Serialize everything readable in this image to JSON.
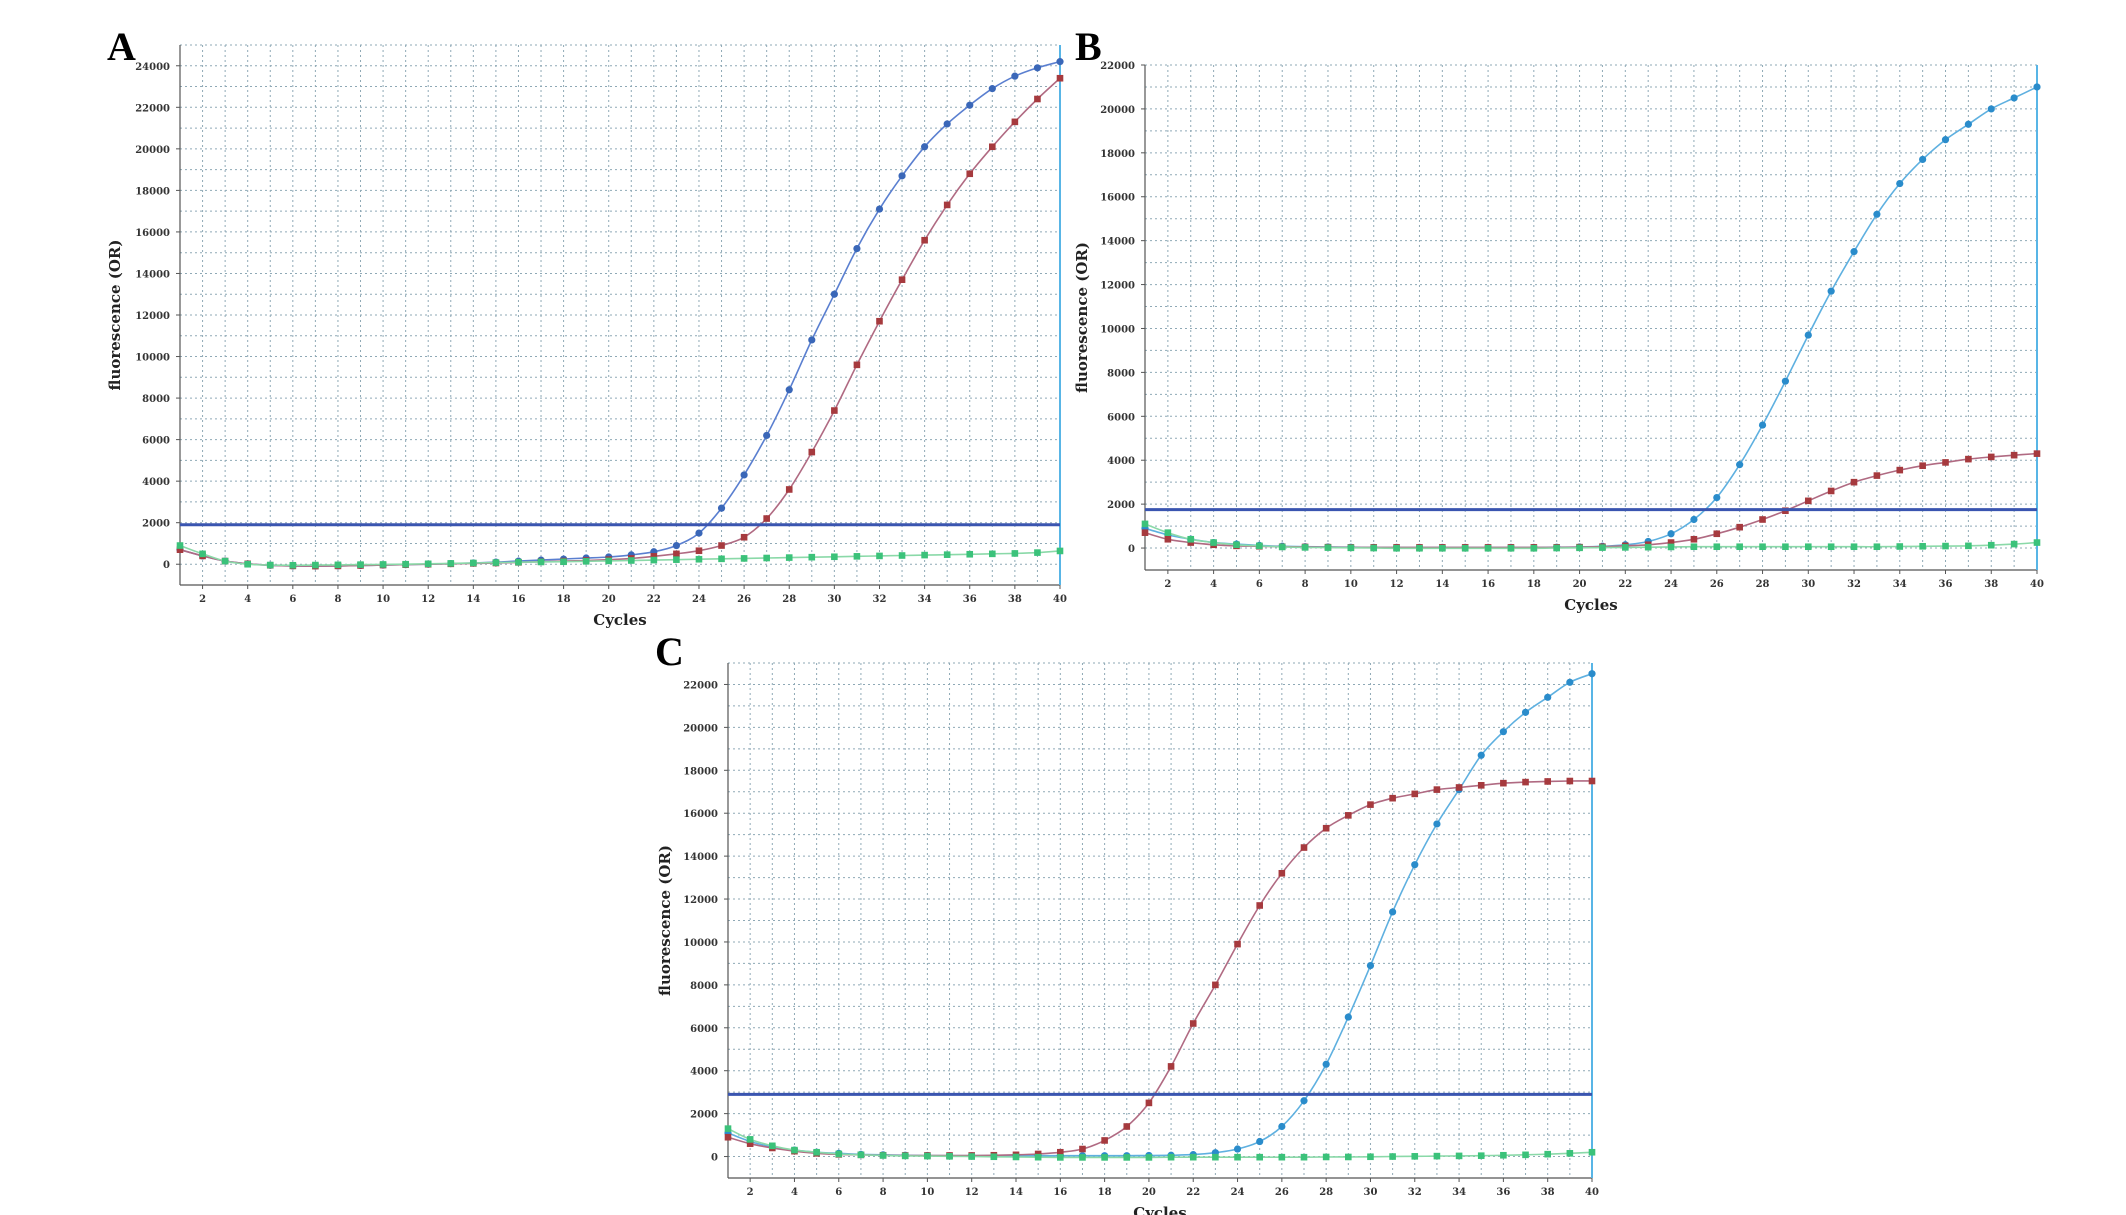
{
  "colors": {
    "series_blue": "#3a67b8",
    "series_lightblue": "#2a8ccb",
    "series_red": "#a63a3e",
    "series_green": "#3bc27a",
    "line_blue": "#5a7fd0",
    "line_lightblue": "#5eb0e0",
    "line_red": "#b06a82",
    "line_green": "#8ad9a8",
    "threshold": "#3a55b0",
    "right_bar": "#58b5e6"
  },
  "chart_data": [
    {
      "panel_label": "A",
      "type": "line",
      "xlabel": "Cycles",
      "ylabel": "fluorescence  (OR)",
      "xlim": [
        1,
        40
      ],
      "ylim": [
        -1000,
        25000
      ],
      "xticks": [
        2,
        4,
        6,
        8,
        10,
        12,
        14,
        16,
        18,
        20,
        22,
        24,
        26,
        28,
        30,
        32,
        34,
        36,
        38,
        40
      ],
      "yticks": [
        0,
        2000,
        4000,
        6000,
        8000,
        10000,
        12000,
        14000,
        16000,
        18000,
        20000,
        22000,
        24000
      ],
      "threshold": 1900,
      "grid": true,
      "series": [
        {
          "marker": "circle",
          "color_key": "blue",
          "values": [
            700,
            400,
            150,
            20,
            -50,
            -80,
            -90,
            -80,
            -60,
            -40,
            -20,
            0,
            30,
            60,
            100,
            150,
            200,
            250,
            300,
            350,
            450,
            600,
            900,
            1500,
            2700,
            4300,
            6200,
            8400,
            10800,
            13000,
            15200,
            17100,
            18700,
            20100,
            21200,
            22100,
            22900,
            23500,
            23900,
            24200
          ]
        },
        {
          "marker": "square",
          "color_key": "red",
          "values": [
            700,
            400,
            150,
            20,
            -50,
            -80,
            -90,
            -80,
            -60,
            -40,
            -20,
            0,
            20,
            40,
            60,
            90,
            120,
            150,
            180,
            220,
            280,
            380,
            500,
            650,
            900,
            1300,
            2200,
            3600,
            5400,
            7400,
            9600,
            11700,
            13700,
            15600,
            17300,
            18800,
            20100,
            21300,
            22400,
            23400
          ]
        },
        {
          "marker": "square",
          "color_key": "green",
          "values": [
            900,
            500,
            150,
            0,
            -40,
            -50,
            -40,
            -30,
            -20,
            -10,
            0,
            20,
            40,
            60,
            80,
            100,
            110,
            120,
            140,
            160,
            180,
            200,
            220,
            240,
            260,
            280,
            300,
            320,
            340,
            360,
            380,
            400,
            420,
            440,
            460,
            480,
            500,
            520,
            560,
            640
          ]
        }
      ]
    },
    {
      "panel_label": "B",
      "type": "line",
      "xlabel": "Cycles",
      "ylabel": "fluorescence  (OR)",
      "xlim": [
        1,
        40
      ],
      "ylim": [
        -1000,
        22000
      ],
      "xticks": [
        2,
        4,
        6,
        8,
        10,
        12,
        14,
        16,
        18,
        20,
        22,
        24,
        26,
        28,
        30,
        32,
        34,
        36,
        38,
        40
      ],
      "yticks": [
        0,
        2000,
        4000,
        6000,
        8000,
        10000,
        12000,
        14000,
        16000,
        18000,
        20000,
        22000
      ],
      "threshold": 1750,
      "grid": true,
      "series": [
        {
          "marker": "circle",
          "color_key": "lightblue",
          "values": [
            900,
            600,
            400,
            250,
            180,
            120,
            80,
            60,
            50,
            40,
            30,
            30,
            30,
            30,
            30,
            30,
            30,
            30,
            40,
            50,
            80,
            150,
            300,
            650,
            1300,
            2300,
            3800,
            5600,
            7600,
            9700,
            11700,
            13500,
            15200,
            16600,
            17700,
            18600,
            19300,
            20000,
            20500,
            21000
          ]
        },
        {
          "marker": "square",
          "color_key": "red",
          "values": [
            700,
            400,
            250,
            150,
            100,
            80,
            60,
            50,
            40,
            30,
            30,
            30,
            30,
            30,
            30,
            30,
            30,
            30,
            30,
            40,
            60,
            100,
            150,
            250,
            400,
            650,
            950,
            1300,
            1700,
            2150,
            2600,
            3000,
            3300,
            3550,
            3750,
            3900,
            4050,
            4150,
            4230,
            4300
          ]
        },
        {
          "marker": "square",
          "color_key": "green",
          "values": [
            1100,
            700,
            400,
            250,
            150,
            100,
            50,
            30,
            20,
            10,
            0,
            -10,
            -10,
            -10,
            -10,
            -10,
            -10,
            -10,
            0,
            10,
            20,
            30,
            40,
            50,
            60,
            60,
            60,
            60,
            60,
            60,
            60,
            60,
            60,
            70,
            80,
            90,
            100,
            130,
            180,
            250
          ]
        }
      ]
    },
    {
      "panel_label": "C",
      "type": "line",
      "xlabel": "Cycles",
      "ylabel": "fluorescence  (OR)",
      "xlim": [
        1,
        40
      ],
      "ylim": [
        -1000,
        23000
      ],
      "xticks": [
        2,
        4,
        6,
        8,
        10,
        12,
        14,
        16,
        18,
        20,
        22,
        24,
        26,
        28,
        30,
        32,
        34,
        36,
        38,
        40
      ],
      "yticks": [
        0,
        2000,
        4000,
        6000,
        8000,
        10000,
        12000,
        14000,
        16000,
        18000,
        20000,
        22000
      ],
      "threshold": 2900,
      "grid": true,
      "series": [
        {
          "marker": "circle",
          "color_key": "lightblue",
          "values": [
            1100,
            700,
            450,
            300,
            200,
            150,
            100,
            80,
            60,
            50,
            40,
            40,
            40,
            40,
            40,
            40,
            40,
            40,
            40,
            50,
            60,
            90,
            180,
            350,
            700,
            1400,
            2600,
            4300,
            6500,
            8900,
            11400,
            13600,
            15500,
            17100,
            18700,
            19800,
            20700,
            21400,
            22100,
            22500
          ]
        },
        {
          "marker": "square",
          "color_key": "red",
          "values": [
            900,
            600,
            400,
            250,
            150,
            100,
            80,
            60,
            50,
            50,
            50,
            50,
            60,
            80,
            120,
            200,
            350,
            750,
            1400,
            2500,
            4200,
            6200,
            8000,
            9900,
            11700,
            13200,
            14400,
            15300,
            15900,
            16400,
            16700,
            16900,
            17100,
            17200,
            17300,
            17400,
            17450,
            17480,
            17500,
            17500
          ]
        },
        {
          "marker": "square",
          "color_key": "green",
          "values": [
            1300,
            800,
            500,
            300,
            200,
            120,
            80,
            50,
            30,
            20,
            10,
            0,
            -10,
            -20,
            -30,
            -40,
            -40,
            -40,
            -40,
            -40,
            -30,
            -30,
            -30,
            -30,
            -30,
            -30,
            -30,
            -20,
            -20,
            -10,
            0,
            10,
            20,
            30,
            40,
            60,
            80,
            110,
            150,
            200
          ]
        }
      ]
    }
  ]
}
